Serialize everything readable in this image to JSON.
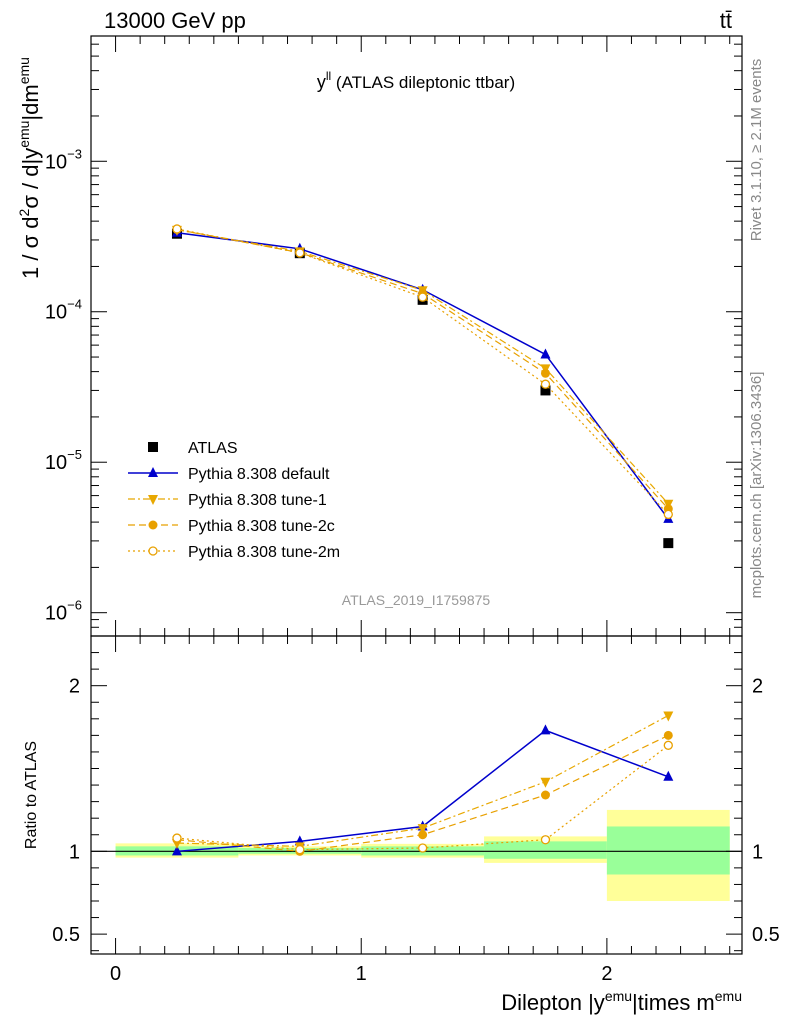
{
  "header": {
    "left_label": "13000 GeV pp",
    "right_label": "tt̄"
  },
  "side_labels": {
    "rivet": "Rivet 3.1.10, ≥ 2.1M events",
    "mcplots": "mcplots.cern.ch [arXiv:1306.3436]"
  },
  "chart_data": [
    {
      "type": "line",
      "panel": "main",
      "title_main": "y",
      "title_sup": "ll",
      "title_rest": " (ATLAS dileptonic ttbar)",
      "ylabel_text": "1 / σ  d²σ / d|y^emu|dm^emu",
      "ylabel_parts": [
        "1 / σ  d",
        "2",
        "σ / d|y",
        "emu",
        "|dm",
        "emu"
      ],
      "y_scale": "log",
      "ylim": [
        7e-07,
        0.0068
      ],
      "xlim": [
        -0.1,
        2.55
      ],
      "analysis_id": "ATLAS_2019_I1759875",
      "y_tick_labels": [
        {
          "base": "10",
          "exp": "−3",
          "value": 0.001
        },
        {
          "base": "10",
          "exp": "−4",
          "value": 0.0001
        },
        {
          "base": "10",
          "exp": "−5",
          "value": 1e-05
        },
        {
          "base": "10",
          "exp": "−6",
          "value": 1e-06
        }
      ],
      "legend_position": "bottom-left",
      "series": [
        {
          "name": "ATLAS",
          "color": "#000000",
          "marker": "square",
          "line": "none",
          "x": [
            0.25,
            0.75,
            1.25,
            1.75,
            2.25
          ],
          "y": [
            0.00033,
            0.000245,
            0.00012,
            3e-05,
            2.9e-06
          ]
        },
        {
          "name": "Pythia 8.308 default",
          "color": "#0000cc",
          "marker": "triangle-up",
          "line": "solid",
          "x": [
            0.25,
            0.75,
            1.25,
            1.75,
            2.25
          ],
          "y": [
            0.000335,
            0.000262,
            0.00014,
            5.2e-05,
            4.2e-06
          ]
        },
        {
          "name": "Pythia 8.308 tune-1",
          "color": "#e8a800",
          "marker": "triangle-down",
          "line": "dashdot",
          "x": [
            0.25,
            0.75,
            1.25,
            1.75,
            2.25
          ],
          "y": [
            0.00035,
            0.000252,
            0.000139,
            4.2e-05,
            5.3e-06
          ]
        },
        {
          "name": "Pythia 8.308 tune-2c",
          "color": "#e8a000",
          "marker": "circle-filled",
          "line": "dashed",
          "x": [
            0.25,
            0.75,
            1.25,
            1.75,
            2.25
          ],
          "y": [
            0.000352,
            0.000247,
            0.000132,
            3.9e-05,
            4.9e-06
          ]
        },
        {
          "name": "Pythia 8.308 tune-2m",
          "color": "#e8a000",
          "marker": "circle-open",
          "line": "dotted",
          "x": [
            0.25,
            0.75,
            1.25,
            1.75,
            2.25
          ],
          "y": [
            0.000355,
            0.000246,
            0.000125,
            3.3e-05,
            4.5e-06
          ]
        }
      ]
    },
    {
      "type": "line",
      "panel": "ratio",
      "ylabel": "Ratio to ATLAS",
      "xlabel_parts": [
        "Dilepton |y",
        "emu",
        "|times m",
        "emu"
      ],
      "xlabel_text": "Dilepton |y^emu|times m^emu",
      "ylim": [
        0.38,
        2.3
      ],
      "xlim": [
        -0.1,
        2.55
      ],
      "y_tick_labels": [
        "2",
        "1",
        "0.5"
      ],
      "y_tick_values": [
        2,
        1,
        0.5
      ],
      "x_tick_labels": [
        "0",
        "1",
        "2"
      ],
      "x_tick_values": [
        0,
        1,
        2
      ],
      "uncertainty_bands": [
        {
          "x0": 0.0,
          "x1": 0.5,
          "inner": [
            0.975,
            1.03
          ],
          "outer": [
            0.962,
            1.048
          ]
        },
        {
          "x0": 0.5,
          "x1": 1.0,
          "inner": [
            0.985,
            1.02
          ],
          "outer": [
            0.975,
            1.03
          ]
        },
        {
          "x0": 1.0,
          "x1": 1.5,
          "inner": [
            0.975,
            1.03
          ],
          "outer": [
            0.962,
            1.045
          ]
        },
        {
          "x0": 1.5,
          "x1": 2.0,
          "inner": [
            0.955,
            1.06
          ],
          "outer": [
            0.93,
            1.09
          ]
        },
        {
          "x0": 2.0,
          "x1": 2.5,
          "inner": [
            0.86,
            1.15
          ],
          "outer": [
            0.7,
            1.25
          ]
        }
      ],
      "series": [
        {
          "name": "Pythia 8.308 default",
          "color": "#0000cc",
          "marker": "triangle-up",
          "line": "solid",
          "x": [
            0.25,
            0.75,
            1.25,
            1.75,
            2.25
          ],
          "y": [
            1.0,
            1.06,
            1.15,
            1.73,
            1.45
          ]
        },
        {
          "name": "Pythia 8.308 tune-1",
          "color": "#e8a800",
          "marker": "triangle-down",
          "line": "dashdot",
          "x": [
            0.25,
            0.75,
            1.25,
            1.75,
            2.25
          ],
          "y": [
            1.05,
            1.03,
            1.14,
            1.42,
            1.82
          ]
        },
        {
          "name": "Pythia 8.308 tune-2c",
          "color": "#e8a000",
          "marker": "circle-filled",
          "line": "dashed",
          "x": [
            0.25,
            0.75,
            1.25,
            1.75,
            2.25
          ],
          "y": [
            1.07,
            1.0,
            1.1,
            1.34,
            1.7
          ]
        },
        {
          "name": "Pythia 8.308 tune-2m",
          "color": "#e8a000",
          "marker": "circle-open",
          "line": "dotted",
          "x": [
            0.25,
            0.75,
            1.25,
            1.75,
            2.25
          ],
          "y": [
            1.08,
            1.01,
            1.02,
            1.07,
            1.64
          ]
        }
      ]
    }
  ]
}
